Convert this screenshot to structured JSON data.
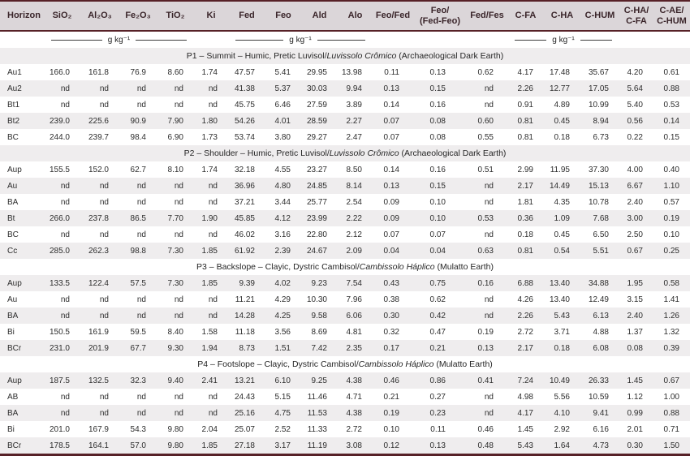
{
  "colors": {
    "border_accent": "#572127",
    "header_bg": "#dbd6d9",
    "header_text": "#3a252a",
    "stripe": "#efedee"
  },
  "table": {
    "columns": [
      "Horizon",
      "SiO₂",
      "Al₂O₃",
      "Fe₂O₃",
      "TiO₂",
      "Ki",
      "Fed",
      "Feo",
      "Ald",
      "Alo",
      "Feo/Fed",
      "Feo/\n(Fed-Feo)",
      "Fed/Fes",
      "C-FA",
      "C-HA",
      "C-HUM",
      "C-HA/\nC-FA",
      "C-AE/\nC-HUM"
    ],
    "unit_label": "g kg⁻¹",
    "unit_segments": [
      {
        "span": 1,
        "unit": false
      },
      {
        "span": 4,
        "unit": true
      },
      {
        "span": 1,
        "unit": false
      },
      {
        "span": 4,
        "unit": true
      },
      {
        "span": 3,
        "unit": false
      },
      {
        "span": 3,
        "unit": true
      },
      {
        "span": 2,
        "unit": false
      }
    ],
    "sections": [
      {
        "title": [
          {
            "text": "P1 – Summit – Humic, Pretic Luvisol/",
            "italic": false
          },
          {
            "text": "Luvissolo Crômico",
            "italic": true
          },
          {
            "text": " (Archaeological Dark Earth)",
            "italic": false
          }
        ],
        "rows": [
          {
            "horizon": "Au1",
            "values": [
              "166.0",
              "161.8",
              "76.9",
              "8.60",
              "1.74",
              "47.57",
              "5.41",
              "29.95",
              "13.98",
              "0.11",
              "0.13",
              "0.62",
              "4.17",
              "17.48",
              "35.67",
              "4.20",
              "0.61"
            ]
          },
          {
            "horizon": "Au2",
            "values": [
              "nd",
              "nd",
              "nd",
              "nd",
              "nd",
              "41.38",
              "5.37",
              "30.03",
              "9.94",
              "0.13",
              "0.15",
              "nd",
              "2.26",
              "12.77",
              "17.05",
              "5.64",
              "0.88"
            ]
          },
          {
            "horizon": "Bt1",
            "values": [
              "nd",
              "nd",
              "nd",
              "nd",
              "nd",
              "45.75",
              "6.46",
              "27.59",
              "3.89",
              "0.14",
              "0.16",
              "nd",
              "0.91",
              "4.89",
              "10.99",
              "5.40",
              "0.53"
            ]
          },
          {
            "horizon": "Bt2",
            "values": [
              "239.0",
              "225.6",
              "90.9",
              "7.90",
              "1.80",
              "54.26",
              "4.01",
              "28.59",
              "2.27",
              "0.07",
              "0.08",
              "0.60",
              "0.81",
              "0.45",
              "8.94",
              "0.56",
              "0.14"
            ]
          },
          {
            "horizon": "BC",
            "values": [
              "244.0",
              "239.7",
              "98.4",
              "6.90",
              "1.73",
              "53.74",
              "3.80",
              "29.27",
              "2.47",
              "0.07",
              "0.08",
              "0.55",
              "0.81",
              "0.18",
              "6.73",
              "0.22",
              "0.15"
            ]
          }
        ]
      },
      {
        "title": [
          {
            "text": "P2 – Shoulder – Humic, Pretic Luvisol/",
            "italic": false
          },
          {
            "text": "Luvissolo Crômico",
            "italic": true
          },
          {
            "text": " (Archaeological Dark Earth)",
            "italic": false
          }
        ],
        "rows": [
          {
            "horizon": "Aup",
            "values": [
              "155.5",
              "152.0",
              "62.7",
              "8.10",
              "1.74",
              "32.18",
              "4.55",
              "23.27",
              "8.50",
              "0.14",
              "0.16",
              "0.51",
              "2.99",
              "11.95",
              "37.30",
              "4.00",
              "0.40"
            ]
          },
          {
            "horizon": "Au",
            "values": [
              "nd",
              "nd",
              "nd",
              "nd",
              "nd",
              "36.96",
              "4.80",
              "24.85",
              "8.14",
              "0.13",
              "0.15",
              "nd",
              "2.17",
              "14.49",
              "15.13",
              "6.67",
              "1.10"
            ]
          },
          {
            "horizon": "BA",
            "values": [
              "nd",
              "nd",
              "nd",
              "nd",
              "nd",
              "37.21",
              "3.44",
              "25.77",
              "2.54",
              "0.09",
              "0.10",
              "nd",
              "1.81",
              "4.35",
              "10.78",
              "2.40",
              "0.57"
            ]
          },
          {
            "horizon": "Bt",
            "values": [
              "266.0",
              "237.8",
              "86.5",
              "7.70",
              "1.90",
              "45.85",
              "4.12",
              "23.99",
              "2.22",
              "0.09",
              "0.10",
              "0.53",
              "0.36",
              "1.09",
              "7.68",
              "3.00",
              "0.19"
            ]
          },
          {
            "horizon": "BC",
            "values": [
              "nd",
              "nd",
              "nd",
              "nd",
              "nd",
              "46.02",
              "3.16",
              "22.80",
              "2.12",
              "0.07",
              "0.07",
              "nd",
              "0.18",
              "0.45",
              "6.50",
              "2.50",
              "0.10"
            ]
          },
          {
            "horizon": "Cc",
            "values": [
              "285.0",
              "262.3",
              "98.8",
              "7.30",
              "1.85",
              "61.92",
              "2.39",
              "24.67",
              "2.09",
              "0.04",
              "0.04",
              "0.63",
              "0.81",
              "0.54",
              "5.51",
              "0.67",
              "0.25"
            ]
          }
        ]
      },
      {
        "title": [
          {
            "text": "P3 – Backslope – Clayic, Dystric Cambisol/",
            "italic": false
          },
          {
            "text": "Cambissolo Háplico",
            "italic": true
          },
          {
            "text": " (Mulatto Earth)",
            "italic": false
          }
        ],
        "rows": [
          {
            "horizon": "Aup",
            "values": [
              "133.5",
              "122.4",
              "57.5",
              "7.30",
              "1.85",
              "9.39",
              "4.02",
              "9.23",
              "7.54",
              "0.43",
              "0.75",
              "0.16",
              "6.88",
              "13.40",
              "34.88",
              "1.95",
              "0.58"
            ]
          },
          {
            "horizon": "Au",
            "values": [
              "nd",
              "nd",
              "nd",
              "nd",
              "nd",
              "11.21",
              "4.29",
              "10.30",
              "7.96",
              "0.38",
              "0.62",
              "nd",
              "4.26",
              "13.40",
              "12.49",
              "3.15",
              "1.41"
            ]
          },
          {
            "horizon": "BA",
            "values": [
              "nd",
              "nd",
              "nd",
              "nd",
              "nd",
              "14.28",
              "4.25",
              "9.58",
              "6.06",
              "0.30",
              "0.42",
              "nd",
              "2.26",
              "5.43",
              "6.13",
              "2.40",
              "1.26"
            ]
          },
          {
            "horizon": "Bi",
            "values": [
              "150.5",
              "161.9",
              "59.5",
              "8.40",
              "1.58",
              "11.18",
              "3.56",
              "8.69",
              "4.81",
              "0.32",
              "0.47",
              "0.19",
              "2.72",
              "3.71",
              "4.88",
              "1.37",
              "1.32"
            ]
          },
          {
            "horizon": "BCr",
            "values": [
              "231.0",
              "201.9",
              "67.7",
              "9.30",
              "1.94",
              "8.73",
              "1.51",
              "7.42",
              "2.35",
              "0.17",
              "0.21",
              "0.13",
              "2.17",
              "0.18",
              "6.08",
              "0.08",
              "0.39"
            ]
          }
        ]
      },
      {
        "title": [
          {
            "text": "P4 – Footslope – Clayic, Dystric Cambisol/",
            "italic": false
          },
          {
            "text": "Cambissolo Háplico",
            "italic": true
          },
          {
            "text": " (Mulatto Earth)",
            "italic": false
          }
        ],
        "rows": [
          {
            "horizon": "Aup",
            "values": [
              "187.5",
              "132.5",
              "32.3",
              "9.40",
              "2.41",
              "13.21",
              "6.10",
              "9.25",
              "4.38",
              "0.46",
              "0.86",
              "0.41",
              "7.24",
              "10.49",
              "26.33",
              "1.45",
              "0.67"
            ]
          },
          {
            "horizon": "AB",
            "values": [
              "nd",
              "nd",
              "nd",
              "nd",
              "nd",
              "24.43",
              "5.15",
              "11.46",
              "4.71",
              "0.21",
              "0.27",
              "nd",
              "4.98",
              "5.56",
              "10.59",
              "1.12",
              "1.00"
            ]
          },
          {
            "horizon": "BA",
            "values": [
              "nd",
              "nd",
              "nd",
              "nd",
              "nd",
              "25.16",
              "4.75",
              "11.53",
              "4.38",
              "0.19",
              "0.23",
              "nd",
              "4.17",
              "4.10",
              "9.41",
              "0.99",
              "0.88"
            ]
          },
          {
            "horizon": "Bi",
            "values": [
              "201.0",
              "167.9",
              "54.3",
              "9.80",
              "2.04",
              "25.07",
              "2.52",
              "11.33",
              "2.72",
              "0.10",
              "0.11",
              "0.46",
              "1.45",
              "2.92",
              "6.16",
              "2.01",
              "0.71"
            ]
          },
          {
            "horizon": "BCr",
            "values": [
              "178.5",
              "164.1",
              "57.0",
              "9.80",
              "1.85",
              "27.18",
              "3.17",
              "11.19",
              "3.08",
              "0.12",
              "0.13",
              "0.48",
              "5.43",
              "1.64",
              "4.73",
              "0.30",
              "1.50"
            ]
          }
        ]
      }
    ]
  }
}
